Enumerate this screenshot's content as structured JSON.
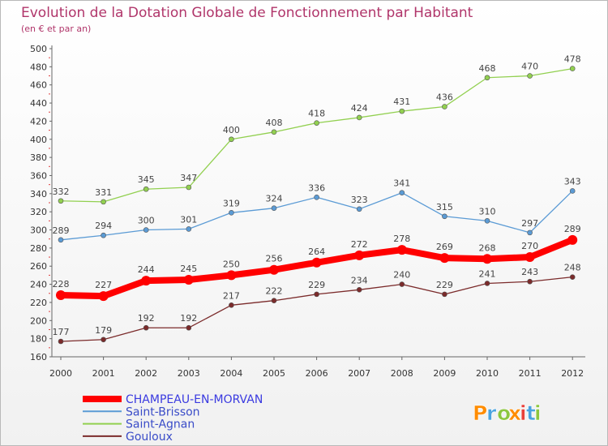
{
  "chart_data": {
    "type": "line",
    "title": "Evolution de la Dotation Globale de Fonctionnement par Habitant",
    "subtitle": "(en € et par an)",
    "x": [
      "2000",
      "2001",
      "2002",
      "2003",
      "2004",
      "2005",
      "2006",
      "2007",
      "2008",
      "2009",
      "2010",
      "2011",
      "2012"
    ],
    "ylim": [
      160,
      500
    ],
    "yticks": [
      160,
      180,
      200,
      220,
      240,
      260,
      280,
      300,
      320,
      340,
      360,
      380,
      400,
      420,
      440,
      460,
      480,
      500
    ],
    "grid": false,
    "legend_position": "bottom-left",
    "series": [
      {
        "name": "CHAMPEAU-EN-MORVAN",
        "color": "#ff0000",
        "emphasis": true,
        "values": [
          228,
          227,
          244,
          245,
          250,
          256,
          264,
          272,
          278,
          269,
          268,
          270,
          289
        ]
      },
      {
        "name": "Saint-Brisson",
        "color": "#5b9bd5",
        "emphasis": false,
        "values": [
          289,
          294,
          300,
          301,
          319,
          324,
          336,
          323,
          341,
          315,
          310,
          297,
          343
        ]
      },
      {
        "name": "Saint-Agnan",
        "color": "#92d050",
        "emphasis": false,
        "values": [
          332,
          331,
          345,
          347,
          400,
          408,
          418,
          424,
          431,
          436,
          468,
          470,
          478
        ]
      },
      {
        "name": "Gouloux",
        "color": "#7b2b2b",
        "emphasis": false,
        "values": [
          177,
          179,
          192,
          192,
          217,
          222,
          229,
          234,
          240,
          229,
          241,
          243,
          248
        ]
      }
    ]
  },
  "brand": {
    "logo_text": "Proxiti",
    "colors": [
      "#ff8c00",
      "#4aa3df",
      "#8cc63f",
      "#ff8c00",
      "#e8403a",
      "#4aa3df",
      "#8cc63f"
    ]
  }
}
